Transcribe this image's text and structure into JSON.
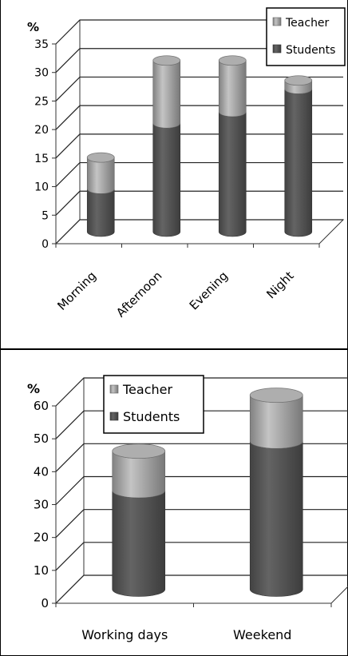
{
  "chart_data": [
    {
      "type": "bar",
      "stacked": true,
      "unit_label": "%",
      "categories": [
        "Morning",
        "Afternoon",
        "Evening",
        "Night"
      ],
      "series": [
        {
          "name": "Students",
          "values": [
            7.5,
            19,
            21,
            25
          ],
          "color": "#555555"
        },
        {
          "name": "Teacher",
          "values": [
            5.5,
            11,
            9,
            1.5
          ],
          "color": "#a6a6a6"
        }
      ],
      "ylim": [
        0,
        35
      ],
      "yticks": [
        "0",
        "5",
        "10",
        "15",
        "20",
        "25",
        "30",
        "35"
      ],
      "grid": true,
      "legend_position": "top-right"
    },
    {
      "type": "bar",
      "stacked": true,
      "unit_label": "%",
      "categories": [
        "Working days",
        "Weekend"
      ],
      "series": [
        {
          "name": "Students",
          "values": [
            30,
            45
          ],
          "color": "#555555"
        },
        {
          "name": "Teacher",
          "values": [
            12,
            14
          ],
          "color": "#a6a6a6"
        }
      ],
      "ylim": [
        0,
        60
      ],
      "yticks": [
        "0",
        "10",
        "20",
        "30",
        "40",
        "50",
        "60"
      ],
      "grid": true,
      "legend_position": "top-left"
    }
  ]
}
